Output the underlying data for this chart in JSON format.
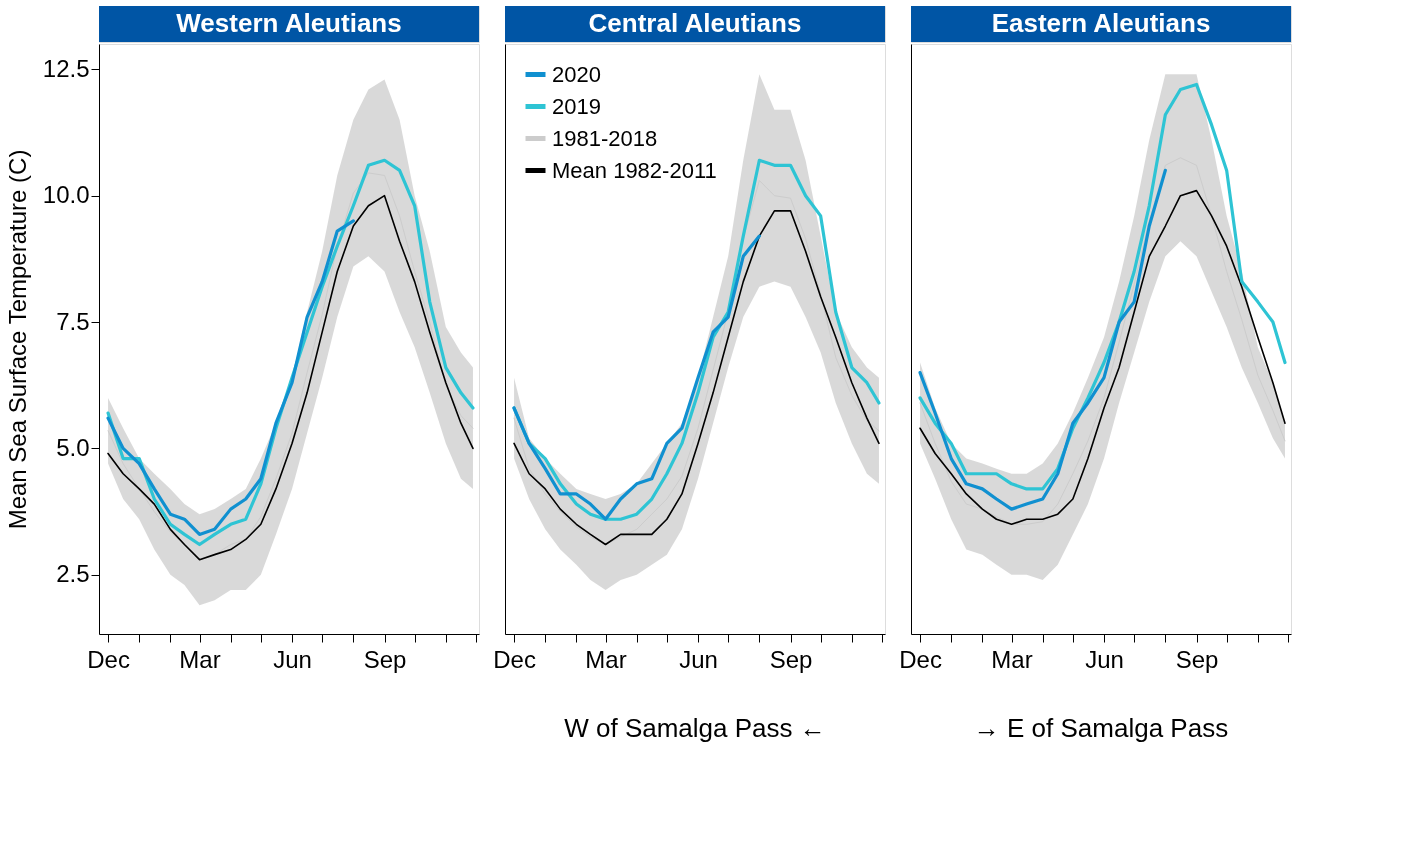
{
  "chart_data": [
    {
      "type": "line",
      "title": "Western Aleutians",
      "ylabel": "Mean Sea Surface Temperature (C)",
      "legend": false,
      "grid": false,
      "x": [
        "2019-12-01",
        "2019-12-16",
        "2020-01-01",
        "2020-01-16",
        "2020-02-01",
        "2020-02-15",
        "2020-03-01",
        "2020-03-16",
        "2020-04-01",
        "2020-04-16",
        "2020-05-01",
        "2020-05-16",
        "2020-06-01",
        "2020-06-16",
        "2020-07-01",
        "2020-07-16",
        "2020-08-01",
        "2020-08-16",
        "2020-09-01",
        "2020-09-16",
        "2020-10-01",
        "2020-10-16",
        "2020-11-01",
        "2020-11-16",
        "2020-11-28"
      ],
      "xlim": [
        "2019-11-22",
        "2020-12-04"
      ],
      "xticks": [
        {
          "value": "2019-12-01",
          "label": "Dec"
        },
        {
          "value": "2020-01-01",
          "label": null
        },
        {
          "value": "2020-02-01",
          "label": null
        },
        {
          "value": "2020-03-01",
          "label": "Mar"
        },
        {
          "value": "2020-04-01",
          "label": null
        },
        {
          "value": "2020-05-01",
          "label": null
        },
        {
          "value": "2020-06-01",
          "label": "Jun"
        },
        {
          "value": "2020-07-01",
          "label": null
        },
        {
          "value": "2020-08-01",
          "label": null
        },
        {
          "value": "2020-09-01",
          "label": "Sep"
        },
        {
          "value": "2020-10-01",
          "label": null
        },
        {
          "value": "2020-11-01",
          "label": null
        },
        {
          "value": "2020-12-01",
          "label": null
        }
      ],
      "ylim": [
        1.33,
        13.0
      ],
      "yticks": [
        2.5,
        {
          "value": 5,
          "label": "5.0"
        },
        7.5,
        {
          "value": 10,
          "label": "10.0"
        },
        12.5
      ],
      "series": [
        {
          "color": "#1090d0",
          "x": [
            "2019-12-01",
            "2019-12-16",
            "2020-01-01",
            "2020-01-16",
            "2020-02-01",
            "2020-02-15",
            "2020-03-01",
            "2020-03-16",
            "2020-04-01",
            "2020-04-16",
            "2020-05-01",
            "2020-05-16",
            "2020-06-01",
            "2020-06-16",
            "2020-07-01",
            "2020-07-16",
            "2020-08-01"
          ],
          "values": [
            5.6,
            5.0,
            4.7,
            4.2,
            3.7,
            3.6,
            3.3,
            3.4,
            3.8,
            4.0,
            4.4,
            5.5,
            6.3,
            7.6,
            8.3,
            9.3,
            9.5
          ]
        },
        {
          "color": "#2ec4d4",
          "values": [
            5.7,
            4.8,
            4.8,
            4.0,
            3.5,
            3.3,
            3.1,
            3.3,
            3.5,
            3.6,
            4.3,
            5.4,
            6.4,
            7.3,
            8.2,
            9.0,
            9.8,
            10.6,
            10.7,
            10.5,
            9.8,
            7.9,
            6.6,
            6.1,
            5.8
          ]
        },
        {
          "color": "#cccccc",
          "values": [
            5.35,
            4.7,
            4.2,
            3.75,
            3.35,
            3.1,
            2.8,
            2.9,
            3.1,
            3.2,
            3.65,
            4.4,
            5.3,
            6.5,
            7.65,
            9.0,
            10.05,
            10.45,
            10.4,
            9.6,
            8.5,
            7.5,
            6.25,
            5.65,
            5.4
          ],
          "lower": [
            4.7,
            4.0,
            3.6,
            3.0,
            2.5,
            2.3,
            1.9,
            2.0,
            2.2,
            2.2,
            2.5,
            3.3,
            4.2,
            5.3,
            6.4,
            7.6,
            8.6,
            8.8,
            8.5,
            7.7,
            7.0,
            6.1,
            5.1,
            4.4,
            4.2
          ],
          "upper": [
            6.0,
            5.4,
            4.8,
            4.5,
            4.2,
            3.9,
            3.7,
            3.8,
            4.0,
            4.2,
            4.8,
            5.5,
            6.4,
            7.7,
            8.9,
            10.4,
            11.5,
            12.1,
            12.3,
            11.5,
            10.0,
            8.9,
            7.4,
            6.9,
            6.6
          ]
        },
        {
          "color": "#000000",
          "values": [
            4.9,
            4.5,
            4.2,
            3.9,
            3.4,
            3.1,
            2.8,
            2.9,
            3.0,
            3.2,
            3.5,
            4.2,
            5.1,
            6.1,
            7.3,
            8.5,
            9.4,
            9.8,
            10.0,
            9.1,
            8.3,
            7.3,
            6.3,
            5.5,
            5.0
          ]
        }
      ]
    },
    {
      "type": "line",
      "title": "Central Aleutians",
      "legend": "top left",
      "grid": false,
      "tick_labels": "x",
      "annotations": [
        "W of Samalga Pass  ←"
      ],
      "x": [
        "2019-12-01",
        "2019-12-16",
        "2020-01-01",
        "2020-01-16",
        "2020-02-01",
        "2020-02-15",
        "2020-03-01",
        "2020-03-16",
        "2020-04-01",
        "2020-04-16",
        "2020-05-01",
        "2020-05-16",
        "2020-06-01",
        "2020-06-16",
        "2020-07-01",
        "2020-07-16",
        "2020-08-01",
        "2020-08-16",
        "2020-09-01",
        "2020-09-16",
        "2020-10-01",
        "2020-10-16",
        "2020-11-01",
        "2020-11-16",
        "2020-11-28"
      ],
      "xlim": [
        "2019-11-22",
        "2020-12-04"
      ],
      "xticks": [
        {
          "value": "2019-12-01",
          "label": "Dec"
        },
        {
          "value": "2020-01-01",
          "label": null
        },
        {
          "value": "2020-02-01",
          "label": null
        },
        {
          "value": "2020-03-01",
          "label": "Mar"
        },
        {
          "value": "2020-04-01",
          "label": null
        },
        {
          "value": "2020-05-01",
          "label": null
        },
        {
          "value": "2020-06-01",
          "label": "Jun"
        },
        {
          "value": "2020-07-01",
          "label": null
        },
        {
          "value": "2020-08-01",
          "label": null
        },
        {
          "value": "2020-09-01",
          "label": "Sep"
        },
        {
          "value": "2020-10-01",
          "label": null
        },
        {
          "value": "2020-11-01",
          "label": null
        },
        {
          "value": "2020-12-01",
          "label": null
        }
      ],
      "ylim": [
        1.33,
        13.0
      ],
      "series": [
        {
          "name": "2020",
          "color": "#1090d0",
          "x": [
            "2019-12-01",
            "2019-12-16",
            "2020-01-01",
            "2020-01-16",
            "2020-02-01",
            "2020-02-15",
            "2020-03-01",
            "2020-03-16",
            "2020-04-01",
            "2020-04-16",
            "2020-05-01",
            "2020-05-16",
            "2020-06-01",
            "2020-06-16",
            "2020-07-01",
            "2020-07-16",
            "2020-08-01"
          ],
          "values": [
            5.8,
            5.1,
            4.6,
            4.1,
            4.1,
            3.9,
            3.6,
            4.0,
            4.3,
            4.4,
            5.1,
            5.4,
            6.4,
            7.3,
            7.6,
            8.8,
            9.2
          ]
        },
        {
          "name": "2019",
          "color": "#2ec4d4",
          "values": [
            5.8,
            5.1,
            4.8,
            4.3,
            3.9,
            3.7,
            3.6,
            3.6,
            3.7,
            4.0,
            4.5,
            5.1,
            6.1,
            7.2,
            7.7,
            9.2,
            10.7,
            10.6,
            10.6,
            10.0,
            9.6,
            7.7,
            6.6,
            6.3,
            5.9
          ]
        },
        {
          "name": "1981-2018",
          "color": "#cccccc",
          "values": [
            5.6,
            4.6,
            4.1,
            3.75,
            3.45,
            3.25,
            3.1,
            3.25,
            3.4,
            3.7,
            4.0,
            4.45,
            5.4,
            6.55,
            7.7,
            9.15,
            10.3,
            10.0,
            9.95,
            9.15,
            8.05,
            6.8,
            6.05,
            5.55,
            5.35
          ],
          "lower": [
            4.8,
            4.0,
            3.4,
            3.0,
            2.7,
            2.4,
            2.2,
            2.4,
            2.5,
            2.7,
            2.9,
            3.4,
            4.4,
            5.5,
            6.6,
            7.6,
            8.2,
            8.3,
            8.2,
            7.6,
            6.9,
            5.9,
            5.1,
            4.5,
            4.3
          ],
          "upper": [
            6.4,
            5.2,
            4.8,
            4.5,
            4.2,
            4.1,
            4.0,
            4.1,
            4.3,
            4.7,
            5.1,
            5.5,
            6.4,
            7.6,
            8.8,
            10.7,
            12.4,
            11.7,
            11.7,
            10.7,
            9.2,
            7.7,
            7.0,
            6.6,
            6.4
          ]
        },
        {
          "name": "Mean 1982-2011",
          "color": "#000000",
          "values": [
            5.1,
            4.5,
            4.2,
            3.8,
            3.5,
            3.3,
            3.1,
            3.3,
            3.3,
            3.3,
            3.6,
            4.1,
            5.1,
            6.1,
            7.2,
            8.3,
            9.2,
            9.7,
            9.7,
            8.9,
            8.0,
            7.2,
            6.3,
            5.6,
            5.1
          ]
        }
      ]
    },
    {
      "type": "line",
      "title": "Eastern Aleutians",
      "legend": false,
      "grid": false,
      "tick_labels": "x",
      "annotations": [
        "→  E of Samalga Pass"
      ],
      "x": [
        "2019-12-01",
        "2019-12-16",
        "2020-01-01",
        "2020-01-16",
        "2020-02-01",
        "2020-02-15",
        "2020-03-01",
        "2020-03-16",
        "2020-04-01",
        "2020-04-16",
        "2020-05-01",
        "2020-05-16",
        "2020-06-01",
        "2020-06-16",
        "2020-07-01",
        "2020-07-16",
        "2020-08-01",
        "2020-08-16",
        "2020-09-01",
        "2020-09-16",
        "2020-10-01",
        "2020-10-16",
        "2020-11-01",
        "2020-11-16",
        "2020-11-28"
      ],
      "xlim": [
        "2019-11-22",
        "2020-12-04"
      ],
      "xticks": [
        {
          "value": "2019-12-01",
          "label": "Dec"
        },
        {
          "value": "2020-01-01",
          "label": null
        },
        {
          "value": "2020-02-01",
          "label": null
        },
        {
          "value": "2020-03-01",
          "label": "Mar"
        },
        {
          "value": "2020-04-01",
          "label": null
        },
        {
          "value": "2020-05-01",
          "label": null
        },
        {
          "value": "2020-06-01",
          "label": "Jun"
        },
        {
          "value": "2020-07-01",
          "label": null
        },
        {
          "value": "2020-08-01",
          "label": null
        },
        {
          "value": "2020-09-01",
          "label": "Sep"
        },
        {
          "value": "2020-10-01",
          "label": null
        },
        {
          "value": "2020-11-01",
          "label": null
        },
        {
          "value": "2020-12-01",
          "label": null
        }
      ],
      "ylim": [
        1.33,
        13.0
      ],
      "series": [
        {
          "color": "#1090d0",
          "x": [
            "2019-12-01",
            "2019-12-16",
            "2020-01-01",
            "2020-01-16",
            "2020-02-01",
            "2020-02-15",
            "2020-03-01",
            "2020-03-16",
            "2020-04-01",
            "2020-04-16",
            "2020-05-01",
            "2020-05-16",
            "2020-06-01",
            "2020-06-16",
            "2020-07-01",
            "2020-07-16",
            "2020-08-01"
          ],
          "values": [
            6.5,
            5.7,
            4.8,
            4.3,
            4.2,
            4.0,
            3.8,
            3.9,
            4.0,
            4.5,
            5.5,
            5.9,
            6.4,
            7.5,
            7.9,
            9.4,
            10.5
          ]
        },
        {
          "color": "#2ec4d4",
          "values": [
            6.0,
            5.5,
            5.1,
            4.5,
            4.5,
            4.5,
            4.3,
            4.2,
            4.2,
            4.6,
            5.4,
            6.0,
            6.7,
            7.5,
            8.5,
            9.8,
            11.6,
            12.1,
            12.2,
            11.4,
            10.5,
            8.3,
            7.9,
            7.5,
            6.7
          ]
        },
        {
          "color": "#cccccc",
          "values": [
            5.9,
            5.1,
            4.35,
            3.9,
            3.8,
            3.65,
            3.5,
            3.5,
            3.55,
            3.9,
            4.5,
            5.15,
            6.0,
            7.1,
            8.25,
            9.5,
            10.6,
            10.75,
            10.6,
            9.6,
            8.5,
            7.55,
            6.45,
            5.75,
            5.15
          ],
          "lower": [
            5.1,
            4.4,
            3.6,
            3.0,
            2.9,
            2.7,
            2.5,
            2.5,
            2.4,
            2.7,
            3.3,
            3.9,
            4.8,
            5.9,
            6.9,
            7.9,
            8.8,
            9.1,
            8.8,
            8.1,
            7.4,
            6.6,
            5.9,
            5.2,
            4.8
          ],
          "upper": [
            6.7,
            5.8,
            5.1,
            4.8,
            4.7,
            4.6,
            4.5,
            4.5,
            4.7,
            5.1,
            5.7,
            6.4,
            7.2,
            8.3,
            9.6,
            11.1,
            12.4,
            12.4,
            12.4,
            11.1,
            9.6,
            8.5,
            7.0,
            6.3,
            5.5
          ]
        },
        {
          "color": "#000000",
          "values": [
            5.4,
            4.9,
            4.5,
            4.1,
            3.8,
            3.6,
            3.5,
            3.6,
            3.6,
            3.7,
            4.0,
            4.8,
            5.8,
            6.6,
            7.7,
            8.8,
            9.4,
            10.0,
            10.1,
            9.6,
            9.0,
            8.2,
            7.2,
            6.3,
            5.5
          ]
        }
      ]
    }
  ]
}
